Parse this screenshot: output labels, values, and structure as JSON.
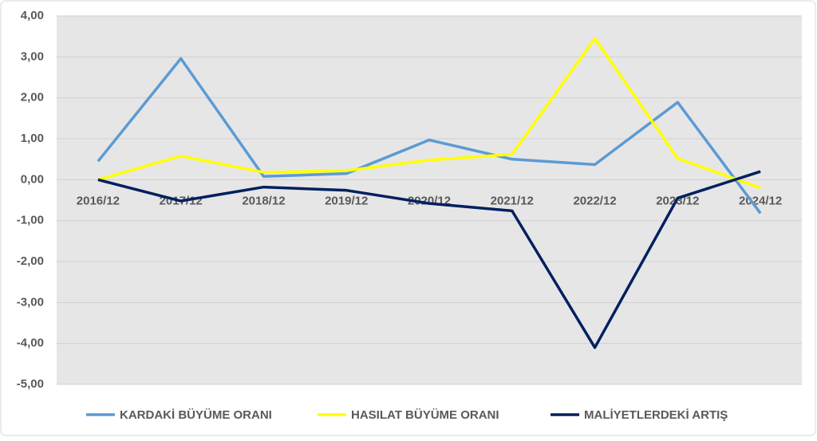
{
  "chart_data": {
    "type": "line",
    "categories": [
      "2016/12",
      "2017/12",
      "2018/12",
      "2019/12",
      "2020/12",
      "2021/12",
      "2022/12",
      "2023/12",
      "2024/12"
    ],
    "series": [
      {
        "name": "KARDAKİ BÜYÜME ORANI",
        "color": "#5b9bd5",
        "values": [
          0.45,
          2.96,
          0.08,
          0.15,
          0.97,
          0.5,
          0.37,
          1.89,
          -0.82
        ]
      },
      {
        "name": "HASILAT BÜYÜME ORANI",
        "color": "#ffff00",
        "values": [
          0,
          0.58,
          0.18,
          0.22,
          0.48,
          0.62,
          3.45,
          0.52,
          -0.2
        ]
      },
      {
        "name": "MALİYETLERDEKİ ARTIŞ",
        "color": "#002060",
        "values": [
          0,
          -0.52,
          -0.18,
          -0.26,
          -0.58,
          -0.76,
          -4.1,
          -0.45,
          0.2
        ]
      }
    ],
    "ylim": [
      -5,
      4
    ],
    "yticks": [
      {
        "value": -5,
        "label": "-5,00"
      },
      {
        "value": -4,
        "label": "-4,00"
      },
      {
        "value": -3,
        "label": "-3,00"
      },
      {
        "value": -2,
        "label": "-2,00"
      },
      {
        "value": -1,
        "label": "-1,00"
      },
      {
        "value": 0,
        "label": "0,00"
      },
      {
        "value": 1,
        "label": "1,00"
      },
      {
        "value": 2,
        "label": "2,00"
      },
      {
        "value": 3,
        "label": "3,00"
      },
      {
        "value": 4,
        "label": "4,00"
      }
    ],
    "grid": true,
    "legend": "bottom"
  }
}
